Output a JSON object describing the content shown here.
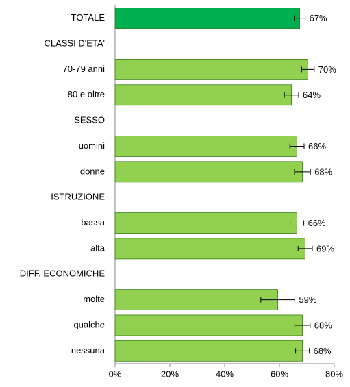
{
  "chart_data": {
    "type": "hbar",
    "categories": [
      "TOTALE",
      "CLASSI D'ETA'",
      "70-79 anni",
      "80 e oltre",
      "SESSO",
      "uomini",
      "donne",
      "ISTRUZIONE",
      "bassa",
      "alta",
      "DIFF. ECONOMICHE",
      "molte",
      "qualche",
      "nessuna"
    ],
    "values": [
      67.4,
      null,
      70.4,
      64.4,
      null,
      66.4,
      68.4,
      null,
      66.4,
      69.4,
      null,
      59.4,
      68.4,
      68.4
    ],
    "errors": [
      2,
      null,
      2.3,
      2.6,
      null,
      2.6,
      2.9,
      null,
      2.5,
      2.6,
      null,
      6.2,
      2.8,
      2.5
    ],
    "value_labels": [
      "67%",
      null,
      "70%",
      "64%",
      null,
      "66%",
      "68%",
      null,
      "66%",
      "69%",
      null,
      "59%",
      "68%",
      "68%"
    ],
    "colors": [
      "#00b050",
      null,
      "#92d050",
      "#92d050",
      null,
      "#92d050",
      "#92d050",
      null,
      "#92d050",
      "#92d050",
      null,
      "#92d050",
      "#92d050",
      "#92d050"
    ],
    "xlim": [
      0,
      80
    ],
    "xticks": [
      {
        "value": 0,
        "label": "0%"
      },
      {
        "value": 20,
        "label": "20%"
      },
      {
        "value": 40,
        "label": "40%"
      },
      {
        "value": 60,
        "label": "60%"
      },
      {
        "value": 80,
        "label": "80%"
      }
    ]
  }
}
